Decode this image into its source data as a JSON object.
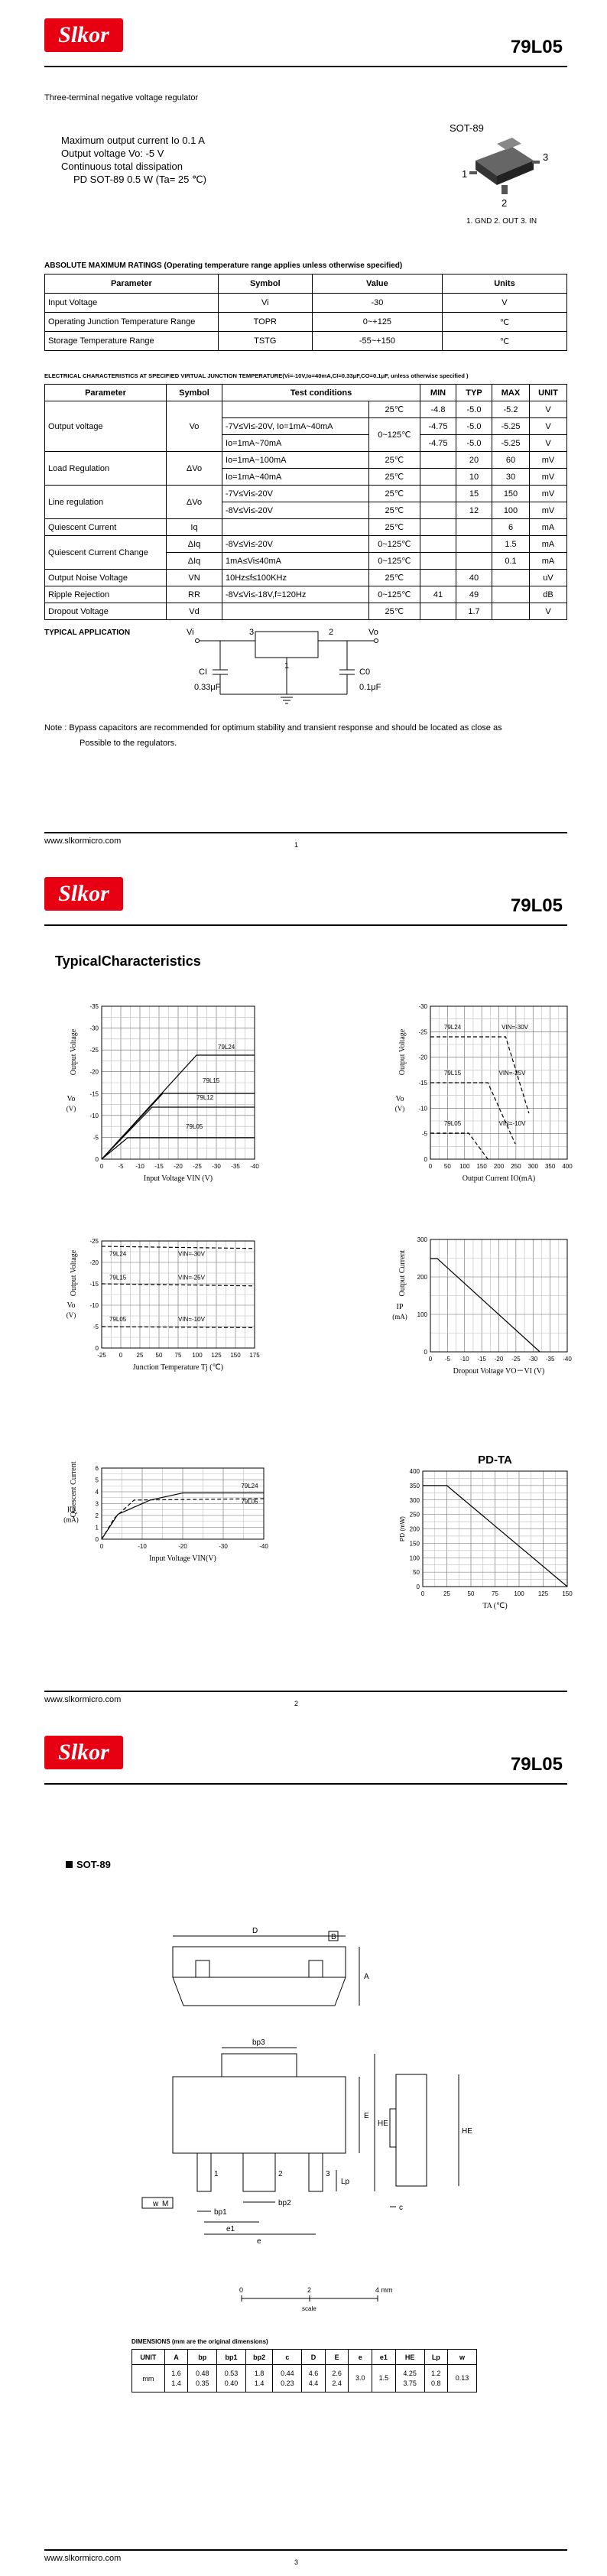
{
  "pages": [
    {
      "header": {
        "logo": "Slkor",
        "part": "79L05"
      },
      "description": "Three-terminal negative voltage regulator",
      "features": [
        "Maximum output current Io 0.1 A",
        "Output voltage Vo: -5 V",
        "Continuous total dissipation",
        "PD   SOT-89 0.5 W (Ta= 25 ℃)"
      ],
      "package": {
        "name": "SOT-89",
        "pins": [
          "1",
          "2",
          "3"
        ],
        "legend": "1. GND  2. OUT  3. IN"
      },
      "abs_max": {
        "title": "ABSOLUTE MAXIMUM RATINGS (Operating temperature range applies unless otherwise specified)",
        "header": [
          "Parameter",
          "Symbol",
          "Value",
          "Units"
        ],
        "rows": [
          [
            "Input Voltage",
            "Vi",
            "-30",
            "V"
          ],
          [
            "Operating Junction Temperature Range",
            "TOPR",
            "0~+125",
            "℃"
          ],
          [
            "Storage Temperature Range",
            "TSTG",
            "-55~+150",
            "℃"
          ]
        ]
      },
      "electrical": {
        "title": "ELECTRICAL CHARACTERISTICS AT SPECIFIED VIRTUAL JUNCTION TEMPERATURE(Vi=-10V,Io=40mA,CI=0.33μF,CO=0.1μF, unless otherwise specified )",
        "header": [
          "Parameter",
          "Symbol",
          "Test conditions",
          "MIN",
          "TYP",
          "MAX",
          "UNIT"
        ],
        "rows": [
          [
            "Output voltage",
            "Vo",
            "25℃",
            "-4.8",
            "-5.0",
            "-5.2",
            "V"
          ],
          [
            "-7V≤Vi≤-20V, Io=1mA~40mA",
            "0~125℃",
            "-4.75",
            "-5.0",
            "-5.25",
            "V"
          ],
          [
            "Io=1mA~70mA",
            "-4.75",
            "-5.0",
            "-5.25",
            "V"
          ],
          [
            "Load Regulation",
            "ΔVo",
            "Io=1mA~100mA",
            "25℃",
            "20",
            "60",
            "mV"
          ],
          [
            "Io=1mA~40mA",
            "25℃",
            "10",
            "30",
            "mV"
          ],
          [
            "Line regulation",
            "ΔVo",
            "-7V≤Vi≤-20V",
            "25℃",
            "15",
            "150",
            "mV"
          ],
          [
            "-8V≤Vi≤-20V",
            "25℃",
            "12",
            "100",
            "mV"
          ],
          [
            "Quiescent Current",
            "Iq",
            "25℃",
            "6",
            "mA"
          ],
          [
            "Quiescent Current Change",
            "ΔIq",
            "-8V≤Vi≤-20V",
            "0~125℃",
            "1.5",
            "mA"
          ],
          [
            "ΔIq",
            "1mA≤Vi≤40mA",
            "0~125℃",
            "0.1",
            "mA"
          ],
          [
            "Output Noise Voltage",
            "VN",
            "10Hz≤f≤100KHz",
            "25℃",
            "40",
            "uV"
          ],
          [
            "Ripple Rejection",
            "RR",
            "-8V≤Vi≤-18V,f=120Hz",
            "0~125℃",
            "41",
            "49",
            "dB"
          ],
          [
            "Dropout Voltage",
            "Vd",
            "25℃",
            "1.7",
            "V"
          ]
        ]
      },
      "application": {
        "title": "TYPICAL APPLICATION",
        "vi": "Vi",
        "pin3": "3",
        "pin2": "2",
        "vo": "Vo",
        "pin1": "1",
        "ci": "CI",
        "ci_value": "0.33μF",
        "co": "C0",
        "co_value": "0.1μF"
      },
      "note": [
        "Note : Bypass capacitors are recommended for optimum stability and transient response and should be located as close as",
        "Possible to the regulators."
      ],
      "footer": {
        "url": "www.slkormicro.com",
        "page": "1"
      }
    },
    {
      "header": {
        "logo": "Slkor",
        "part": "79L05"
      },
      "title": "TypicalCharacteristics",
      "graphs": [
        {
          "ylabel": "Output Voltage",
          "ysym": "Vo",
          "yunit": "(V)",
          "xlabel": "Input Voltage VIN (V)",
          "yticks": [
            "0",
            "-5",
            "-10",
            "-15",
            "-20",
            "-25",
            "-30",
            "-35"
          ],
          "xticks": [
            "0",
            "-5",
            "-10",
            "-15",
            "-20",
            "-25",
            "-30",
            "-35",
            "-40"
          ],
          "labels": [
            "79L24",
            "79L15",
            "79L12",
            "79L05"
          ]
        },
        {
          "ylabel": "Output Voltage",
          "ysym": "Vo",
          "yunit": "(V)",
          "xlabel": "Output Current IO(mA)",
          "yticks": [
            "0",
            "-5",
            "-10",
            "-15",
            "-20",
            "-25",
            "-30"
          ],
          "xticks": [
            "0",
            "50",
            "100",
            "150",
            "200",
            "250",
            "300",
            "350",
            "400"
          ],
          "labels": [
            "79L24",
            "VIN=-30V",
            "79L15",
            "VIN=-25V",
            "79L05",
            "VIN=-10V"
          ]
        },
        {
          "ylabel": "Output Voltage",
          "ysym": "Vo",
          "yunit": "(V)",
          "xlabel": "Junction Temperature Tj (℃)",
          "yticks": [
            "0",
            "-5",
            "-10",
            "-15",
            "-20",
            "-25"
          ],
          "xticks": [
            "-25",
            "0",
            "25",
            "50",
            "75",
            "100",
            "125",
            "150",
            "175"
          ],
          "labels": [
            "79L24",
            "VIN=-30V",
            "79L15",
            "VIN=-25V",
            "79L05",
            "VIN=-10V"
          ]
        },
        {
          "ylabel": "Output Current",
          "ysym": "IP",
          "yunit": "(mA)",
          "xlabel": "Dropout Voltage VO－VI (V)",
          "yticks": [
            "0",
            "100",
            "200",
            "300"
          ],
          "xticks": [
            "0",
            "-5",
            "-10",
            "-15",
            "-20",
            "-25",
            "-30",
            "-35",
            "-40"
          ],
          "labels": []
        },
        {
          "ylabel": "Quiescent Current",
          "ysym": "IQ",
          "yunit": "(mA)",
          "xlabel": "Input Voltage VIN(V)",
          "yticks": [
            "0",
            "1",
            "2",
            "3",
            "4",
            "5",
            "6"
          ],
          "xticks": [
            "0",
            "-10",
            "-20",
            "-30",
            "-40"
          ],
          "labels": [
            "79L24",
            "79L05"
          ]
        },
        {
          "title": "PD-TA",
          "ylabel": "PD (mW)",
          "xlabel": "TA (℃)",
          "yticks": [
            "0",
            "50",
            "100",
            "150",
            "200",
            "250",
            "300",
            "350",
            "400"
          ],
          "xticks": [
            "0",
            "25",
            "50",
            "75",
            "100",
            "125",
            "150"
          ],
          "labels": []
        }
      ],
      "footer": {
        "url": "www.slkormicro.com",
        "page": "2"
      }
    },
    {
      "header": {
        "logo": "Slkor",
        "part": "79L05"
      },
      "section": "SOT-89",
      "drawing": {
        "d": "D",
        "b": "B",
        "a": "A",
        "bp3": "bp3",
        "e": "E",
        "he": "HE",
        "lp": "Lp",
        "pin1": "1",
        "pin2": "2",
        "pin3": "3",
        "bp2": "bp2",
        "bp1": "bp1",
        "e1": "e1",
        "pitch": "e",
        "w": "w",
        "m": "M",
        "c": "c",
        "he2": "HE"
      },
      "scale": {
        "ticks": [
          "0",
          "2",
          "4 mm"
        ],
        "label": "scale"
      },
      "dimensions": {
        "title": "DIMENSIONS (mm are the original dimensions)",
        "header": [
          "UNIT",
          "A",
          "bp",
          "bp1",
          "bp2",
          "c",
          "D",
          "E",
          "e",
          "e1",
          "HE",
          "Lp",
          "w"
        ],
        "unit": "mm",
        "values": [
          [
            "1.6",
            "1.4"
          ],
          [
            "0.48",
            "0.35"
          ],
          [
            "0.53",
            "0.40"
          ],
          [
            "1.8",
            "1.4"
          ],
          [
            "0.44",
            "0.23"
          ],
          [
            "4.6",
            "4.4"
          ],
          [
            "2.6",
            "2.4"
          ],
          [
            "3.0"
          ],
          [
            "1.5"
          ],
          [
            "4.25",
            "3.75"
          ],
          [
            "1.2",
            "0.8"
          ],
          [
            "0.13"
          ]
        ]
      },
      "footer": {
        "url": "www.slkormicro.com",
        "page": "3"
      }
    }
  ]
}
